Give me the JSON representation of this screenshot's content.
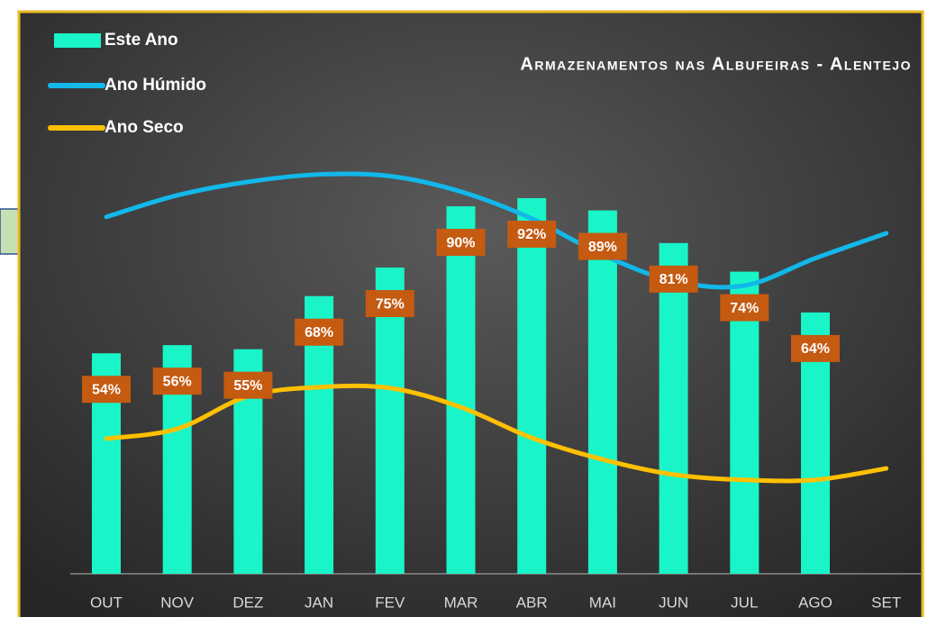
{
  "chart_data": {
    "type": "bar_line",
    "title": "Armazenamentos nas Albufeiras - Alentejo",
    "categories": [
      "OUT",
      "NOV",
      "DEZ",
      "JAN",
      "FEV",
      "MAR",
      "ABR",
      "MAI",
      "JUN",
      "JUL",
      "AGO",
      "SET"
    ],
    "series": [
      {
        "name": "Este Ano",
        "type": "bar",
        "color": "#19f5c8",
        "values": [
          54,
          56,
          55,
          68,
          75,
          90,
          92,
          89,
          81,
          74,
          64,
          null
        ],
        "value_labels": [
          "54%",
          "56%",
          "55%",
          "68%",
          "75%",
          "90%",
          "92%",
          "89%",
          "81%",
          "74%",
          "64%",
          null
        ],
        "label_color": "#c55a11"
      },
      {
        "name": "Ano Húmido",
        "type": "line",
        "color": "#12b8ea",
        "values": [
          87.4,
          92.7,
          96,
          97.8,
          97.4,
          93.6,
          87,
          78.1,
          71.7,
          70.6,
          77.3,
          83.4
        ]
      },
      {
        "name": "Ano Seco",
        "type": "line",
        "color": "#ffc000",
        "values": [
          33.1,
          35.5,
          43.5,
          45.7,
          45.5,
          40.8,
          33.3,
          28,
          24.3,
          23,
          23,
          25.8
        ]
      }
    ],
    "ylim": [
      0,
      137
    ]
  }
}
